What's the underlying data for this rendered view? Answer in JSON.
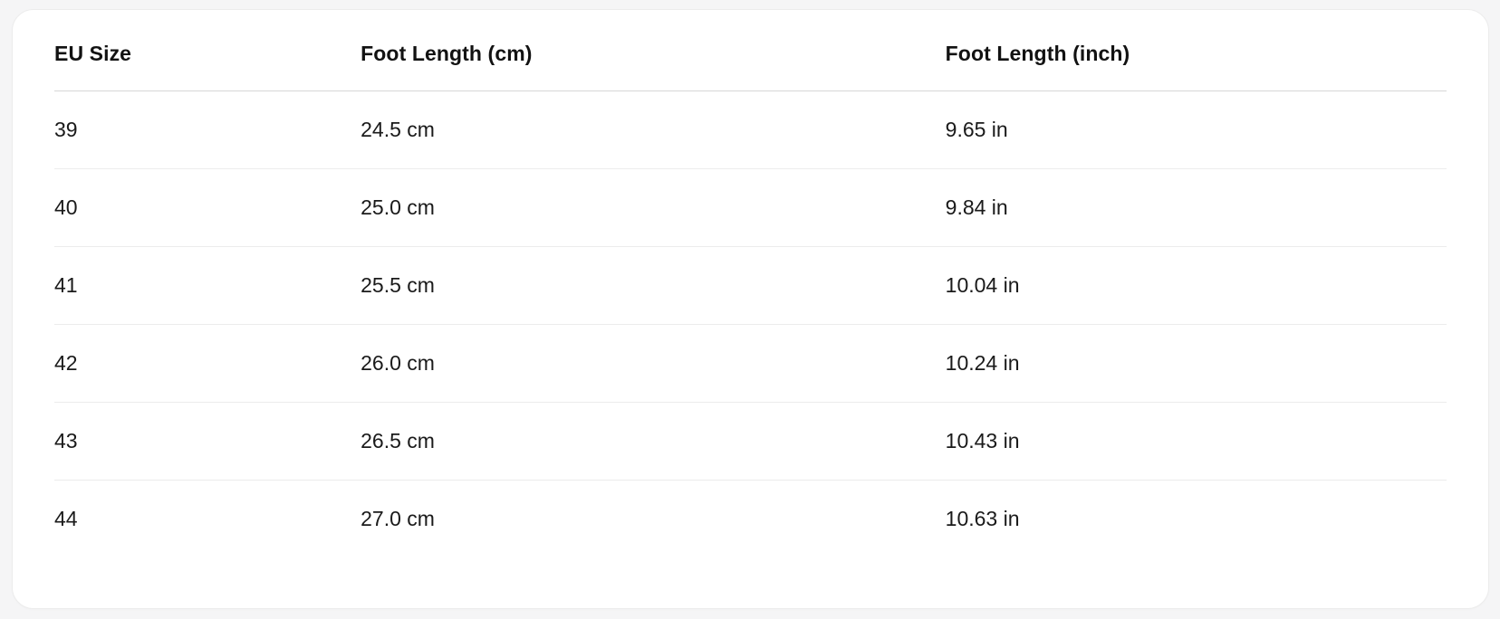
{
  "page": {
    "background_color": "#f5f5f6"
  },
  "card": {
    "background_color": "#ffffff",
    "border_color": "#ececec",
    "header_divider_color": "#d7d7d7",
    "row_divider_color": "#ececec",
    "text_color": "#1a1a1a"
  },
  "size_chart": {
    "columns": [
      "EU Size",
      "Foot Length (cm)",
      "Foot Length (inch)"
    ],
    "rows": [
      [
        "39",
        "24.5 cm",
        "9.65 in"
      ],
      [
        "40",
        "25.0 cm",
        "9.84 in"
      ],
      [
        "41",
        "25.5 cm",
        "10.04 in"
      ],
      [
        "42",
        "26.0 cm",
        "10.24 in"
      ],
      [
        "43",
        "26.5 cm",
        "10.43 in"
      ],
      [
        "44",
        "27.0 cm",
        "10.63 in"
      ]
    ]
  }
}
